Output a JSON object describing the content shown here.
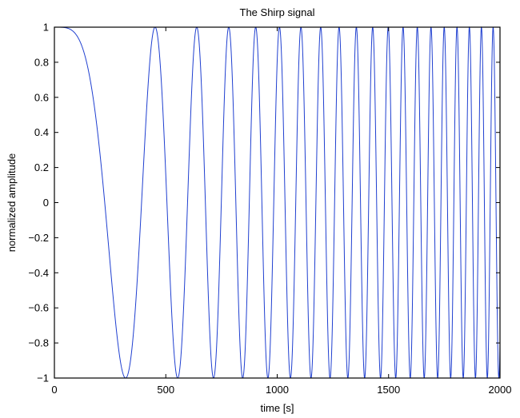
{
  "chart_data": {
    "type": "line",
    "title": "The Shirp signal",
    "xlabel": "time [s]",
    "ylabel": "normalized amplitude",
    "xlim": [
      0,
      2000
    ],
    "ylim": [
      -1,
      1
    ],
    "grid": false,
    "xticks": [
      0,
      500,
      1000,
      1500,
      2000
    ],
    "xtick_labels": [
      "0",
      "500",
      "1000",
      "1500",
      "2000"
    ],
    "yticks": [
      1,
      0.8,
      0.6,
      0.4,
      0.2,
      0,
      -0.2,
      -0.4,
      -0.6,
      -0.8,
      -1
    ],
    "ytick_labels": [
      "1",
      "0.8",
      "0.6",
      "0.4",
      "0.2",
      "0",
      "−0.2",
      "−0.4",
      "−0.6",
      "−0.8",
      "−1"
    ],
    "series": [
      {
        "color": "#1f3fd0",
        "formula": "y = cos(2π · f0 · t²)",
        "f0": 4.9e-06,
        "t_start": 0,
        "t_end": 2000,
        "samples": 6000,
        "x_maxima": [
          0,
          452,
          639,
          783,
          904,
          1011,
          1107,
          1196,
          1279,
          1356,
          1430,
          1500,
          1567,
          1630,
          1692,
          1751,
          1808,
          1864,
          1918,
          1970
        ],
        "x_minima": [
          319,
          553,
          714,
          845,
          959,
          1060,
          1153,
          1238,
          1318,
          1394,
          1466,
          1534,
          1599,
          1662,
          1722,
          1780,
          1836,
          1891,
          1944,
          1996
        ]
      }
    ]
  }
}
